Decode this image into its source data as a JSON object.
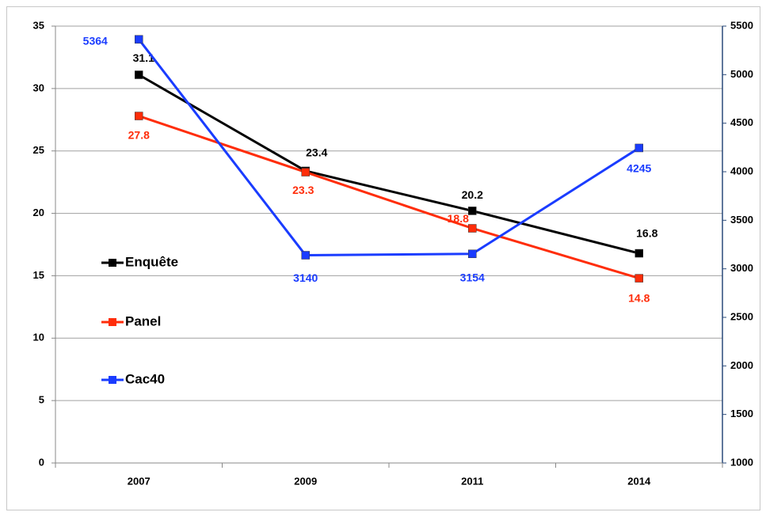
{
  "chart_data": {
    "type": "line",
    "categories": [
      "2007",
      "2009",
      "2011",
      "2014"
    ],
    "series": [
      {
        "name": "Enquête",
        "color": "#000000",
        "values": [
          31.1,
          23.4,
          20.2,
          16.8
        ]
      },
      {
        "name": "Panel",
        "color": "#ff2d0a",
        "values": [
          27.8,
          23.3,
          18.8,
          14.8
        ]
      },
      {
        "name": "Cac40",
        "color": "#1a3cff",
        "values": [
          5364,
          3140,
          3154,
          4245
        ],
        "axis": "y2"
      }
    ],
    "ylim": [
      0,
      35
    ],
    "yticks": [
      0,
      5,
      10,
      15,
      20,
      25,
      30,
      35
    ],
    "y2lim": [
      1000,
      5500
    ],
    "y2ticks": [
      1000,
      1500,
      2000,
      2500,
      3000,
      3500,
      4000,
      4500,
      5000,
      5500
    ],
    "grid": true,
    "legend": "left"
  }
}
